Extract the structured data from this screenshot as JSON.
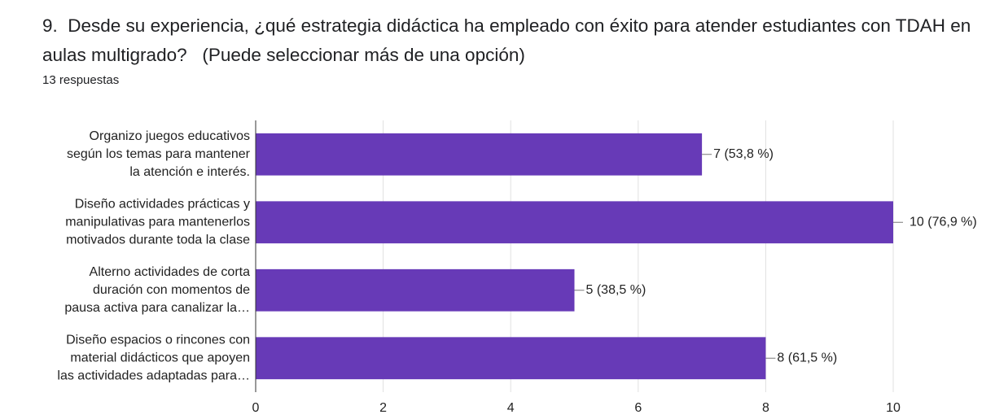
{
  "chart_data": {
    "type": "hbar",
    "title": "9.  Desde su experiencia, ¿qué estrategia didáctica ha empleado con éxito para atender estudiantes con TDAH en aulas multigrado?   (Puede seleccionar más de una opción)",
    "subtitle": "13 respuestas",
    "categories": [
      [
        "Organizo juegos educativos",
        "según los temas para mantener",
        "la atención e interés."
      ],
      [
        "Diseño actividades prácticas y",
        "manipulativas para mantenerlos",
        "motivados durante toda la clase"
      ],
      [
        "Alterno actividades de corta",
        "duración con momentos de",
        "pausa activa para canalizar la…"
      ],
      [
        "Diseño espacios o rincones con",
        "material didácticos que apoyen",
        "las actividades adaptadas para…"
      ]
    ],
    "values": [
      7,
      10,
      5,
      8
    ],
    "value_labels": [
      "7 (53,8 %)",
      "10 (76,9 %)",
      "5 (38,5 %)",
      "8 (61,5 %)"
    ],
    "color": "#673ab7",
    "xlim": [
      0,
      10
    ],
    "xticks": [
      0,
      2,
      4,
      6,
      8,
      10
    ],
    "grid": true
  }
}
